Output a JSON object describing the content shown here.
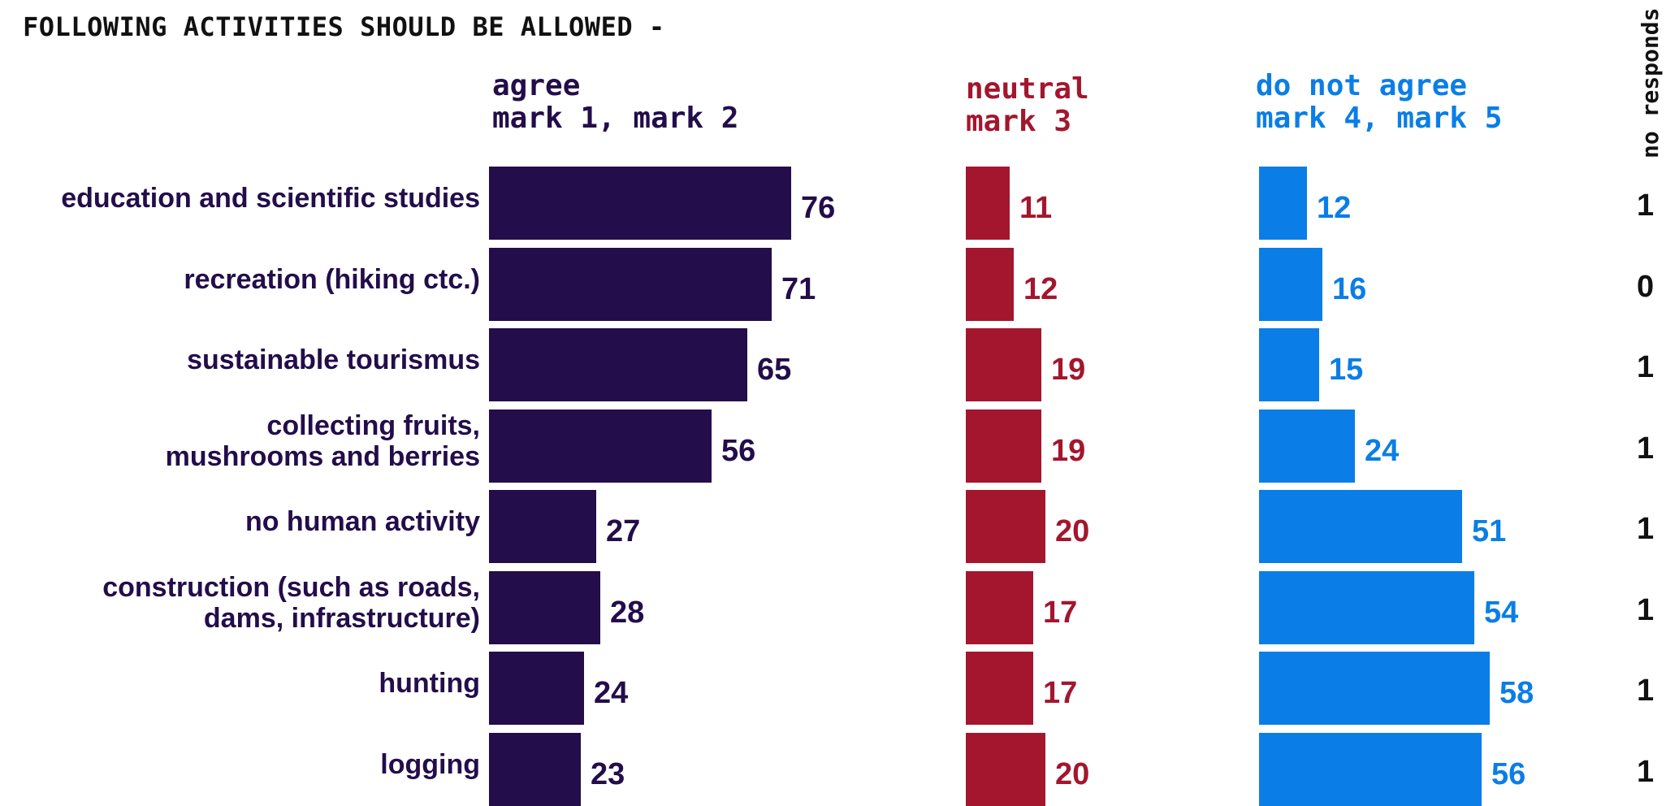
{
  "title": "FOLLOWING ACTIVITIES SHOULD BE ALLOWED -",
  "colors": {
    "agree": "#230d4a",
    "neutral": "#a3162e",
    "disagree": "#0a7ee6",
    "noresp": "#111111"
  },
  "chart_data": {
    "type": "bar",
    "categories": [
      "education and scientific studies",
      "recreation (hiking ctc.)",
      "sustainable tourismus",
      "collecting fruits, mushrooms and berries",
      "no human activity",
      "construction (such as roads, dams, infrastructure)",
      "hunting",
      "logging"
    ],
    "category_lines": [
      [
        "education and scientific studies"
      ],
      [
        "recreation (hiking ctc.)"
      ],
      [
        "sustainable tourismus"
      ],
      [
        "collecting fruits,",
        "mushrooms and berries"
      ],
      [
        "no human activity"
      ],
      [
        "construction (such as roads,",
        "dams, infrastructure)"
      ],
      [
        "hunting"
      ],
      [
        "logging"
      ]
    ],
    "series": [
      {
        "key": "agree",
        "header": [
          "agree",
          "mark 1, mark 2"
        ],
        "values": [
          76,
          71,
          65,
          56,
          27,
          28,
          24,
          23
        ]
      },
      {
        "key": "neutral",
        "header": [
          "neutral",
          "mark 3"
        ],
        "values": [
          11,
          12,
          19,
          19,
          20,
          17,
          17,
          20
        ]
      },
      {
        "key": "disagree",
        "header": [
          "do not agree",
          "mark 4, mark 5"
        ],
        "values": [
          12,
          16,
          15,
          24,
          51,
          54,
          58,
          56
        ]
      }
    ],
    "no_responds": {
      "label": "no responds",
      "values": [
        1,
        0,
        1,
        1,
        1,
        1,
        1,
        1
      ]
    }
  }
}
